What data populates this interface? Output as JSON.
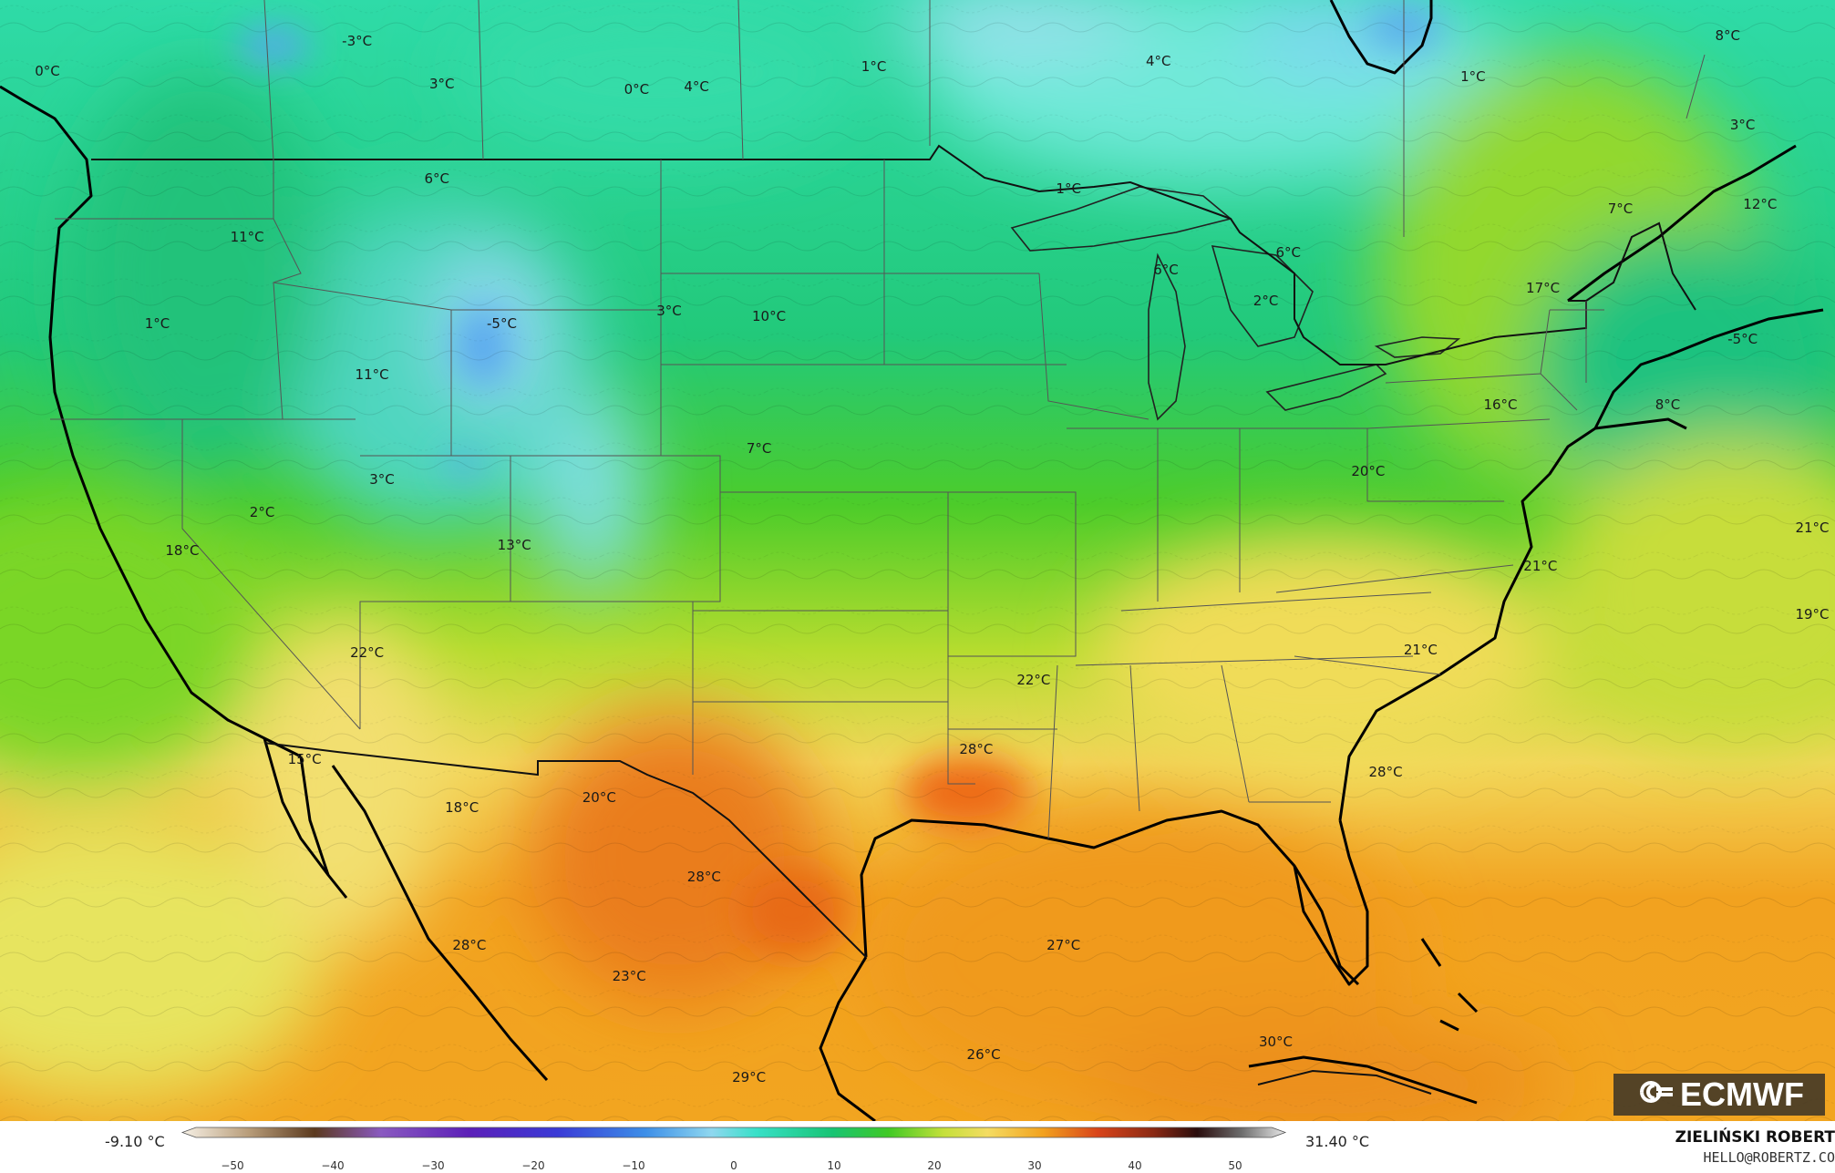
{
  "map": {
    "model_logo": "ECMWF",
    "temperature_labels": [
      {
        "text": "-3°C",
        "lon": -117.2,
        "lat": 52.4
      },
      {
        "text": "0°C",
        "lon": -129.6,
        "lat": 51.2
      },
      {
        "text": "3°C",
        "lon": -113.8,
        "lat": 50.7
      },
      {
        "text": "0°C",
        "lon": -106.0,
        "lat": 50.5
      },
      {
        "text": "4°C",
        "lon": -103.6,
        "lat": 50.6
      },
      {
        "text": "1°C",
        "lon": -96.5,
        "lat": 51.4
      },
      {
        "text": "4°C",
        "lon": -85.1,
        "lat": 51.6
      },
      {
        "text": "1°C",
        "lon": -72.5,
        "lat": 51.0
      },
      {
        "text": "8°C",
        "lon": -62.3,
        "lat": 52.6
      },
      {
        "text": "3°C",
        "lon": -61.7,
        "lat": 49.1
      },
      {
        "text": "6°C",
        "lon": -114.0,
        "lat": 47.0
      },
      {
        "text": "1°C",
        "lon": -88.7,
        "lat": 46.6
      },
      {
        "text": "11°C",
        "lon": -121.6,
        "lat": 44.7
      },
      {
        "text": "7°C",
        "lon": -66.6,
        "lat": 45.8
      },
      {
        "text": "12°C",
        "lon": -61.0,
        "lat": 46.0
      },
      {
        "text": "6°C",
        "lon": -79.9,
        "lat": 44.1
      },
      {
        "text": "6°C",
        "lon": -84.8,
        "lat": 43.4
      },
      {
        "text": "17°C",
        "lon": -69.7,
        "lat": 42.7
      },
      {
        "text": "1°C",
        "lon": -125.2,
        "lat": 41.3
      },
      {
        "text": "-5°C",
        "lon": -111.4,
        "lat": 41.3
      },
      {
        "text": "3°C",
        "lon": -104.7,
        "lat": 41.8
      },
      {
        "text": "10°C",
        "lon": -100.7,
        "lat": 41.6
      },
      {
        "text": "2°C",
        "lon": -80.8,
        "lat": 42.2
      },
      {
        "text": "-5°C",
        "lon": -61.7,
        "lat": 40.7
      },
      {
        "text": "11°C",
        "lon": -116.6,
        "lat": 39.3
      },
      {
        "text": "16°C",
        "lon": -71.4,
        "lat": 38.1
      },
      {
        "text": "8°C",
        "lon": -64.7,
        "lat": 38.1
      },
      {
        "text": "7°C",
        "lon": -101.1,
        "lat": 36.4
      },
      {
        "text": "20°C",
        "lon": -76.7,
        "lat": 35.5
      },
      {
        "text": "3°C",
        "lon": -116.2,
        "lat": 35.2
      },
      {
        "text": "2°C",
        "lon": -121.0,
        "lat": 33.9
      },
      {
        "text": "18°C",
        "lon": -124.2,
        "lat": 32.4
      },
      {
        "text": "13°C",
        "lon": -110.9,
        "lat": 32.6
      },
      {
        "text": "21°C",
        "lon": -69.8,
        "lat": 31.8
      },
      {
        "text": "21°C",
        "lon": -58.1,
        "lat": 33.3
      },
      {
        "text": "19°C",
        "lon": -58.0,
        "lat": 29.9
      },
      {
        "text": "22°C",
        "lon": -116.8,
        "lat": 28.4
      },
      {
        "text": "21°C",
        "lon": -74.6,
        "lat": 28.5
      },
      {
        "text": "22°C",
        "lon": -90.1,
        "lat": 27.3
      },
      {
        "text": "15°C",
        "lon": -119.3,
        "lat": 24.2
      },
      {
        "text": "28°C",
        "lon": -92.4,
        "lat": 24.6
      },
      {
        "text": "28°C",
        "lon": -76.0,
        "lat": 23.7
      },
      {
        "text": "18°C",
        "lon": -113.0,
        "lat": 22.3
      },
      {
        "text": "20°C",
        "lon": -107.5,
        "lat": 22.7
      },
      {
        "text": "28°C",
        "lon": -103.3,
        "lat": 19.6
      },
      {
        "text": "28°C",
        "lon": -112.7,
        "lat": 16.9
      },
      {
        "text": "27°C",
        "lon": -88.9,
        "lat": 16.9
      },
      {
        "text": "23°C",
        "lon": -106.3,
        "lat": 15.7
      },
      {
        "text": "26°C",
        "lon": -92.1,
        "lat": 12.6
      },
      {
        "text": "29°C",
        "lon": -101.5,
        "lat": 11.7
      },
      {
        "text": "30°C",
        "lon": -80.4,
        "lat": 13.1
      }
    ]
  },
  "legend": {
    "min_label": "-9.10 °C",
    "max_label": "31.40 °C",
    "ticks": [
      "−50",
      "−40",
      "−30",
      "−20",
      "−10",
      "0",
      "10",
      "20",
      "30",
      "40",
      "50"
    ],
    "tick_values": [
      -50,
      -40,
      -30,
      -20,
      -10,
      0,
      10,
      20,
      30,
      40,
      50
    ],
    "range": [
      -55,
      55
    ],
    "unit": "°C"
  },
  "credit": {
    "name": "ZIELIŃSKI ROBERT",
    "email": "HELLO@ROBERTZ.CO"
  }
}
